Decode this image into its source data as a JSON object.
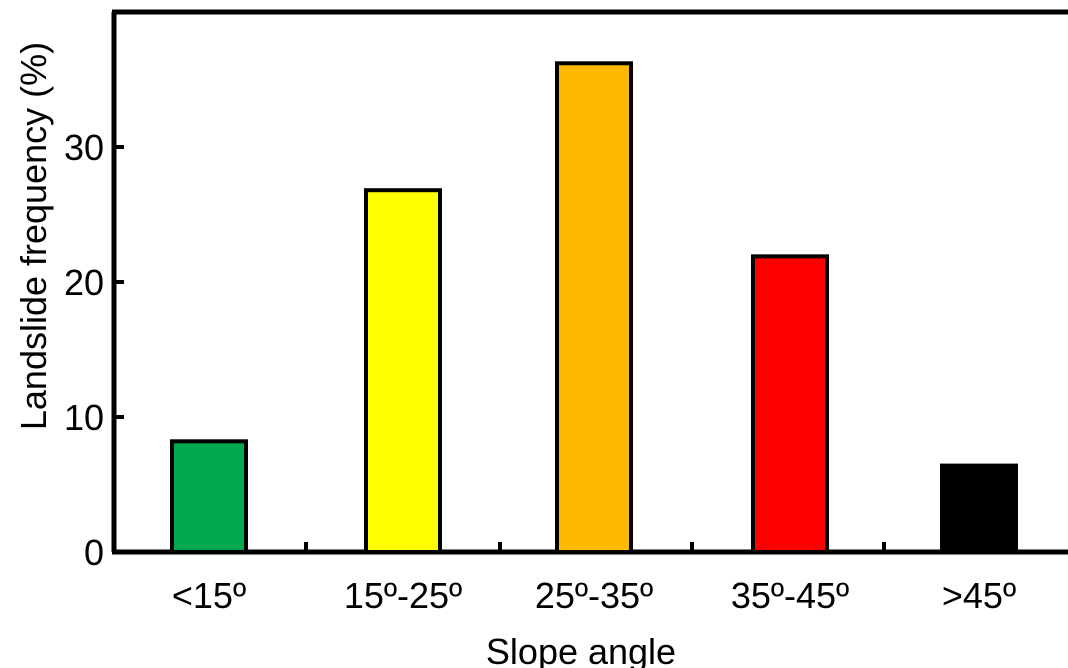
{
  "chart_data": {
    "type": "bar",
    "categories": [
      "<15º",
      "15º-25º",
      "25º-35º",
      "35º-45º",
      ">45º"
    ],
    "values": [
      8.2,
      26.8,
      36.2,
      21.9,
      6.4
    ],
    "colors": [
      "#00a84f",
      "#ffff00",
      "#ffb900",
      "#ff0000",
      "#000000"
    ],
    "title": "",
    "xlabel": "Slope angle",
    "ylabel": "Landslide frequency (%)",
    "ylim": [
      0,
      40
    ],
    "yticks": [
      0,
      10,
      20,
      30
    ],
    "grid": false,
    "legend": "none"
  }
}
